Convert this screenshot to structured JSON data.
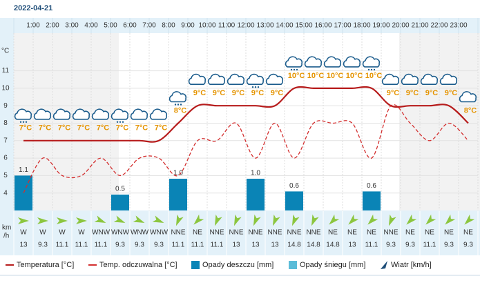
{
  "chart_data": {
    "type": "meteogram",
    "title": "2022-04-21",
    "hour_labels": [
      "1:00",
      "2:00",
      "3:00",
      "4:00",
      "5:00",
      "6:00",
      "7:00",
      "8:00",
      "9:00",
      "10:00",
      "11:00",
      "12:00",
      "13:00",
      "14:00",
      "15:00",
      "16:00",
      "17:00",
      "18:00",
      "19:00",
      "20:00",
      "21:00",
      "22:00",
      "23:00"
    ],
    "y_unit": "°C",
    "ylim": [
      3,
      13
    ],
    "yticks": [
      4,
      5,
      6,
      7,
      8,
      9,
      10,
      11
    ],
    "grid": true,
    "series": [
      {
        "name": "Temperatura [°C]",
        "color": "#b71c1c",
        "kind": "line",
        "values": [
          7,
          7,
          7,
          7,
          7,
          7,
          7,
          7,
          8,
          9,
          9,
          9,
          9,
          9,
          10,
          10,
          10,
          10,
          10,
          9,
          9,
          9,
          9,
          8
        ],
        "value_labels": [
          "7°C",
          "7°C",
          "7°C",
          "7°C",
          "7°C",
          "7°C",
          "7°C",
          "7°C",
          "8°C",
          "9°C",
          "9°C",
          "9°C",
          "9°C",
          "9°C",
          "10°C",
          "10°C",
          "10°C",
          "10°C",
          "10°C",
          "9°C",
          "9°C",
          "9°C",
          "9°C",
          "8°C"
        ]
      },
      {
        "name": "Temp. odczuwalna [°C]",
        "color": "#d32f2f",
        "kind": "dashed",
        "values": [
          4,
          6,
          5,
          5,
          6,
          5,
          6,
          6,
          5,
          7,
          7,
          8,
          6,
          8,
          6,
          8,
          8,
          8,
          6,
          9,
          8,
          7,
          8,
          7
        ]
      },
      {
        "name": "Opady deszczu [mm]",
        "color": "#0a84b6",
        "kind": "bar",
        "values": [
          1.1,
          0,
          0,
          0,
          0,
          0.5,
          0,
          0,
          1.0,
          0,
          0,
          0,
          1.0,
          0,
          0.6,
          0,
          0,
          0,
          0.6,
          0,
          0,
          0,
          0,
          0
        ],
        "value_labels": [
          "1.1",
          null,
          null,
          null,
          null,
          "0.5",
          null,
          null,
          "1.0",
          null,
          null,
          null,
          "1.0",
          null,
          "0.6",
          null,
          null,
          null,
          "0.6",
          null,
          null,
          null,
          null,
          null
        ]
      },
      {
        "name": "Opady śniegu [mm]",
        "color": "#5bbcd8",
        "kind": "bar",
        "values": [
          0,
          0,
          0,
          0,
          0,
          0,
          0,
          0,
          0,
          0,
          0,
          0,
          0,
          0,
          0,
          0,
          0,
          0,
          0,
          0,
          0,
          0,
          0,
          0
        ]
      }
    ],
    "wind": {
      "name": "Wiatr [km/h]",
      "color": "#8cc63f",
      "unit_lines": [
        "km",
        "/h"
      ],
      "directions": [
        "W",
        "W",
        "W",
        "W",
        "WNW",
        "WNW",
        "WNW",
        "WNW",
        "NNE",
        "NE",
        "NNE",
        "NNE",
        "NNE",
        "NNE",
        "NNE",
        "NNE",
        "NE",
        "NE",
        "NE",
        "NNE",
        "NE",
        "NE",
        "NE",
        "NE"
      ],
      "values": [
        13,
        9.3,
        11.1,
        11.1,
        11.1,
        9.3,
        9.3,
        9.3,
        11.1,
        11.1,
        11.1,
        13,
        13,
        13,
        14.8,
        14.8,
        14.8,
        13,
        11.1,
        9.3,
        9.3,
        11.1,
        9.3,
        9.3
      ]
    }
  }
}
